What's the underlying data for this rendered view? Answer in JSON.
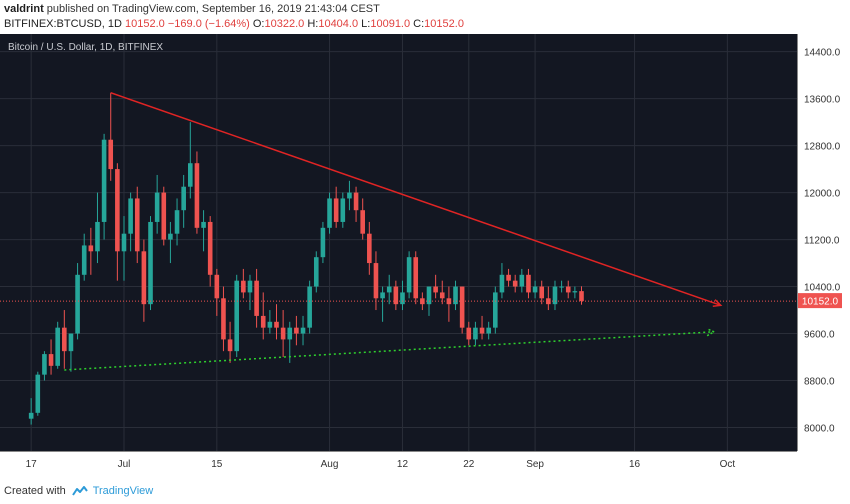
{
  "header": {
    "author": "valdrint",
    "published_text": "published on TradingView.com, September 16, 2019 21:43:04 CEST",
    "symbol": "BITFINEX:BTCUSD, 1D",
    "last": "10152.0",
    "change": "−169.0 (−1.64%)",
    "o_label": "O:",
    "o_value": "10322.0",
    "h_label": "H:",
    "h_value": "10404.0",
    "l_label": "L:",
    "l_value": "10091.0",
    "c_label": "C:",
    "c_value": "10152.0"
  },
  "footer": {
    "created_with": "Created with",
    "brand": "TradingView"
  },
  "colors": {
    "background": "#131722",
    "grid": "#2a2e39",
    "up": "#26a69a",
    "down": "#ef5350",
    "resistance": "#e02424",
    "support": "#2ed12e",
    "price_line": "#ef5350"
  },
  "chart_data": {
    "type": "candlestick",
    "title": "Bitcoin / U.S. Dollar, 1D, BITFINEX",
    "ylim": [
      7600,
      14700
    ],
    "y_ticks": [
      "8000.0",
      "8800.0",
      "9600.0",
      "10400.0",
      "11200.0",
      "12000.0",
      "12800.0",
      "13600.0",
      "14400.0"
    ],
    "x_ticks": [
      {
        "label": "17",
        "day": 0
      },
      {
        "label": "Jul",
        "day": 14
      },
      {
        "label": "15",
        "day": 28
      },
      {
        "label": "Aug",
        "day": 45
      },
      {
        "label": "12",
        "day": 56
      },
      {
        "label": "22",
        "day": 66
      },
      {
        "label": "Sep",
        "day": 76
      },
      {
        "label": "16",
        "day": 91
      },
      {
        "label": "Oct",
        "day": 105
      }
    ],
    "x_range": [
      -4.7,
      115.5
    ],
    "current_price": "10152.0",
    "candles": [
      [
        8150,
        8500,
        8050,
        8250
      ],
      [
        8250,
        8950,
        8200,
        8900
      ],
      [
        8900,
        9300,
        8800,
        9250
      ],
      [
        9250,
        9500,
        8900,
        9050
      ],
      [
        9050,
        9800,
        9000,
        9700
      ],
      [
        9700,
        10000,
        9000,
        9300
      ],
      [
        9300,
        9600,
        8950,
        9600
      ],
      [
        9600,
        10800,
        9500,
        10600
      ],
      [
        10600,
        11300,
        10500,
        11100
      ],
      [
        11100,
        11400,
        10600,
        11000
      ],
      [
        11000,
        12000,
        10800,
        11500
      ],
      [
        11500,
        13000,
        11200,
        12900
      ],
      [
        12900,
        13700,
        12200,
        12400
      ],
      [
        12400,
        12500,
        10500,
        11000
      ],
      [
        11000,
        11600,
        10500,
        11300
      ],
      [
        11300,
        12000,
        11000,
        11900
      ],
      [
        11900,
        12100,
        10800,
        11000
      ],
      [
        11000,
        11200,
        9800,
        10100
      ],
      [
        10100,
        11600,
        10000,
        11500
      ],
      [
        11500,
        12300,
        11300,
        12000
      ],
      [
        12000,
        12100,
        11100,
        11200
      ],
      [
        11200,
        11500,
        10800,
        11300
      ],
      [
        11300,
        11900,
        11100,
        11700
      ],
      [
        11700,
        12300,
        11400,
        12100
      ],
      [
        12100,
        13200,
        11900,
        12500
      ],
      [
        12500,
        12700,
        11300,
        11400
      ],
      [
        11400,
        11700,
        11000,
        11500
      ],
      [
        11500,
        11600,
        10400,
        10600
      ],
      [
        10600,
        10700,
        9900,
        10200
      ],
      [
        10200,
        10400,
        9300,
        9500
      ],
      [
        9500,
        9800,
        9100,
        9300
      ],
      [
        9300,
        10600,
        9200,
        10500
      ],
      [
        10500,
        10700,
        10200,
        10300
      ],
      [
        10300,
        10600,
        10000,
        10500
      ],
      [
        10500,
        10700,
        9700,
        9900
      ],
      [
        9900,
        10300,
        9500,
        9700
      ],
      [
        9700,
        10000,
        9600,
        9800
      ],
      [
        9800,
        10100,
        9500,
        9700
      ],
      [
        9700,
        10000,
        9200,
        9500
      ],
      [
        9500,
        9800,
        9100,
        9700
      ],
      [
        9700,
        9900,
        9400,
        9600
      ],
      [
        9600,
        9900,
        9400,
        9700
      ],
      [
        9700,
        10500,
        9600,
        10400
      ],
      [
        10400,
        11000,
        10300,
        10900
      ],
      [
        10900,
        11500,
        10800,
        11400
      ],
      [
        11400,
        12000,
        11300,
        11900
      ],
      [
        11900,
        12100,
        11400,
        11500
      ],
      [
        11500,
        12000,
        11400,
        11900
      ],
      [
        11900,
        12200,
        11700,
        12000
      ],
      [
        12000,
        12100,
        11500,
        11700
      ],
      [
        11700,
        11900,
        11200,
        11300
      ],
      [
        11300,
        11500,
        10600,
        10800
      ],
      [
        10800,
        11000,
        10000,
        10200
      ],
      [
        10200,
        10400,
        9800,
        10300
      ],
      [
        10300,
        10600,
        10100,
        10400
      ],
      [
        10400,
        10500,
        10000,
        10100
      ],
      [
        10100,
        10500,
        10000,
        10300
      ],
      [
        10300,
        11000,
        10200,
        10900
      ],
      [
        10900,
        11000,
        10100,
        10200
      ],
      [
        10200,
        10300,
        10000,
        10100
      ],
      [
        10100,
        10400,
        9900,
        10400
      ],
      [
        10400,
        10600,
        10200,
        10300
      ],
      [
        10300,
        10500,
        10100,
        10200
      ],
      [
        10200,
        10400,
        9800,
        10100
      ],
      [
        10100,
        10500,
        10000,
        10400
      ],
      [
        10400,
        10400,
        9600,
        9700
      ],
      [
        9700,
        9800,
        9400,
        9500
      ],
      [
        9500,
        9800,
        9400,
        9700
      ],
      [
        9700,
        9900,
        9500,
        9600
      ],
      [
        9600,
        9800,
        9500,
        9700
      ],
      [
        9700,
        10400,
        9600,
        10300
      ],
      [
        10300,
        10800,
        10200,
        10600
      ],
      [
        10600,
        10700,
        10400,
        10500
      ],
      [
        10500,
        10600,
        10300,
        10400
      ],
      [
        10400,
        10700,
        10300,
        10600
      ],
      [
        10600,
        10700,
        10200,
        10300
      ],
      [
        10300,
        10500,
        10200,
        10400
      ],
      [
        10400,
        10500,
        10100,
        10200
      ],
      [
        10200,
        10400,
        10000,
        10100
      ],
      [
        10100,
        10500,
        10000,
        10400
      ],
      [
        10400,
        10500,
        10300,
        10400
      ],
      [
        10400,
        10500,
        10200,
        10300
      ],
      [
        10300,
        10400,
        10200,
        10322
      ],
      [
        10322,
        10404,
        10091,
        10152
      ]
    ],
    "trendlines": [
      {
        "name": "resistance",
        "start": {
          "day": 12,
          "price": 13700
        },
        "end": {
          "day": 104,
          "price": 10080
        },
        "style": "solid"
      },
      {
        "name": "support",
        "start": {
          "day": 5,
          "price": 8980
        },
        "end": {
          "day": 103,
          "price": 9630
        },
        "style": "dotted"
      }
    ]
  }
}
